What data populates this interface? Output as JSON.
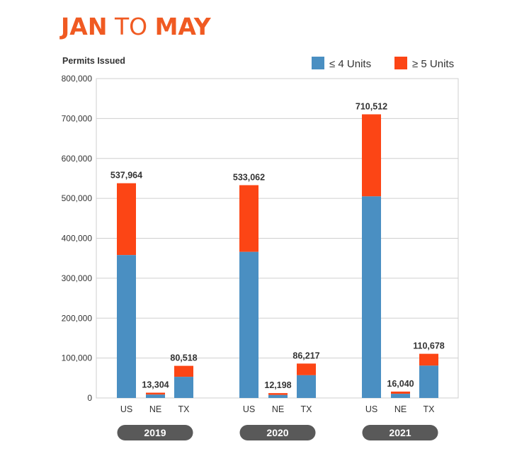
{
  "title": {
    "part1": "JAN",
    "part2": "TO",
    "part3": "MAY"
  },
  "chart_data": {
    "type": "bar",
    "stacked": true,
    "ylabel": "Permits Issued",
    "ylim": [
      0,
      800000
    ],
    "yticks": [
      0,
      100000,
      200000,
      300000,
      400000,
      500000,
      600000,
      700000,
      800000
    ],
    "ytick_labels": [
      "0",
      "100,000",
      "200,000",
      "300,000",
      "400,000",
      "500,000",
      "600,000",
      "700,000",
      "800,000"
    ],
    "grid": true,
    "legend_position": "top-right",
    "colors": {
      "le4": "#4a8fc2",
      "ge5": "#fc4515"
    },
    "legend": [
      {
        "label": "≤ 4 Units",
        "color": "#4a8fc2"
      },
      {
        "label": "≥ 5 Units",
        "color": "#fc4515"
      }
    ],
    "groups": [
      {
        "label": "2019",
        "bars": [
          {
            "category": "US",
            "le4": 358000,
            "total": 537964,
            "total_label": "537,964"
          },
          {
            "category": "NE",
            "le4": 8500,
            "total": 13304,
            "total_label": "13,304"
          },
          {
            "category": "TX",
            "le4": 53000,
            "total": 80518,
            "total_label": "80,518"
          }
        ]
      },
      {
        "label": "2020",
        "bars": [
          {
            "category": "US",
            "le4": 366000,
            "total": 533062,
            "total_label": "533,062"
          },
          {
            "category": "NE",
            "le4": 7500,
            "total": 12198,
            "total_label": "12,198"
          },
          {
            "category": "TX",
            "le4": 57000,
            "total": 86217,
            "total_label": "86,217"
          }
        ]
      },
      {
        "label": "2021",
        "bars": [
          {
            "category": "US",
            "le4": 505000,
            "total": 710512,
            "total_label": "710,512"
          },
          {
            "category": "NE",
            "le4": 10500,
            "total": 16040,
            "total_label": "16,040"
          },
          {
            "category": "TX",
            "le4": 81000,
            "total": 110678,
            "total_label": "110,678"
          }
        ]
      }
    ]
  }
}
